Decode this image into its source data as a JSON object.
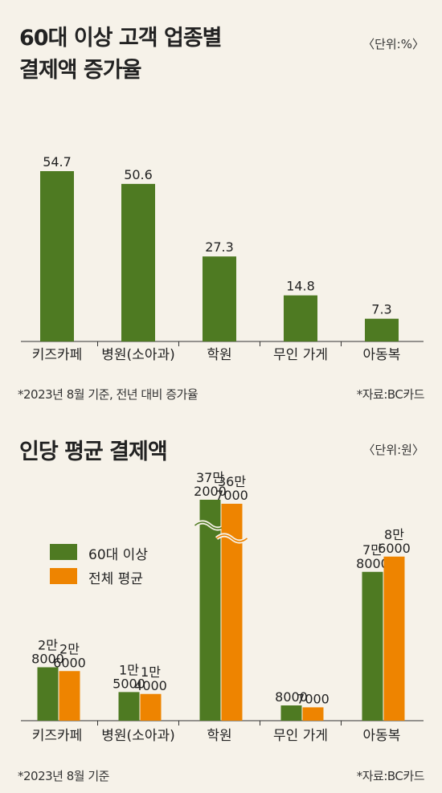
{
  "chart1": {
    "title_line1": "60대 이상 고객 업종별",
    "title_line2": "결제액 증가율",
    "unit": "〈단위:%〉",
    "note": "*2023년 8월 기준, 전년 대비 증가율",
    "source": "*자료:BC카드"
  },
  "chart2": {
    "title": "인당 평균 결제액",
    "unit": "〈단위:원〉",
    "note": "*2023년 8월 기준",
    "source": "*자료:BC카드"
  },
  "colors": {
    "green": "#4e7a22",
    "orange": "#ee8400",
    "background": "#f6f2e9"
  },
  "chart_data": [
    {
      "type": "bar",
      "title": "60대 이상 고객 업종별 결제액 증가율",
      "categories": [
        "키즈카페",
        "병원(소아과)",
        "학원",
        "무인 가게",
        "아동복"
      ],
      "values": [
        54.7,
        50.6,
        27.3,
        14.8,
        7.3
      ],
      "value_labels": [
        "54.7",
        "50.6",
        "27.3",
        "14.8",
        "7.3"
      ],
      "ylim": [
        0,
        60
      ],
      "grid": false
    },
    {
      "type": "bar",
      "title": "인당 평균 결제액",
      "categories": [
        "키즈카페",
        "병원(소아과)",
        "학원",
        "무인 가게",
        "아동복"
      ],
      "series": [
        {
          "name": "60대 이상",
          "values": [
            28000,
            15000,
            372000,
            8000,
            78000
          ],
          "labels": [
            [
              "2만",
              "8000"
            ],
            [
              "1만",
              "5000"
            ],
            [
              "37만",
              "2000"
            ],
            [
              "8000"
            ],
            [
              "7만",
              "8000"
            ]
          ]
        },
        {
          "name": "전체 평균",
          "values": [
            26000,
            14000,
            367000,
            7000,
            86000
          ],
          "labels": [
            [
              "2만",
              "6000"
            ],
            [
              "1만",
              "4000"
            ],
            [
              "36만",
              "7000"
            ],
            [
              "7000"
            ],
            [
              "8만",
              "6000"
            ]
          ]
        }
      ],
      "axis_break": true,
      "legend": "middle-left"
    }
  ]
}
